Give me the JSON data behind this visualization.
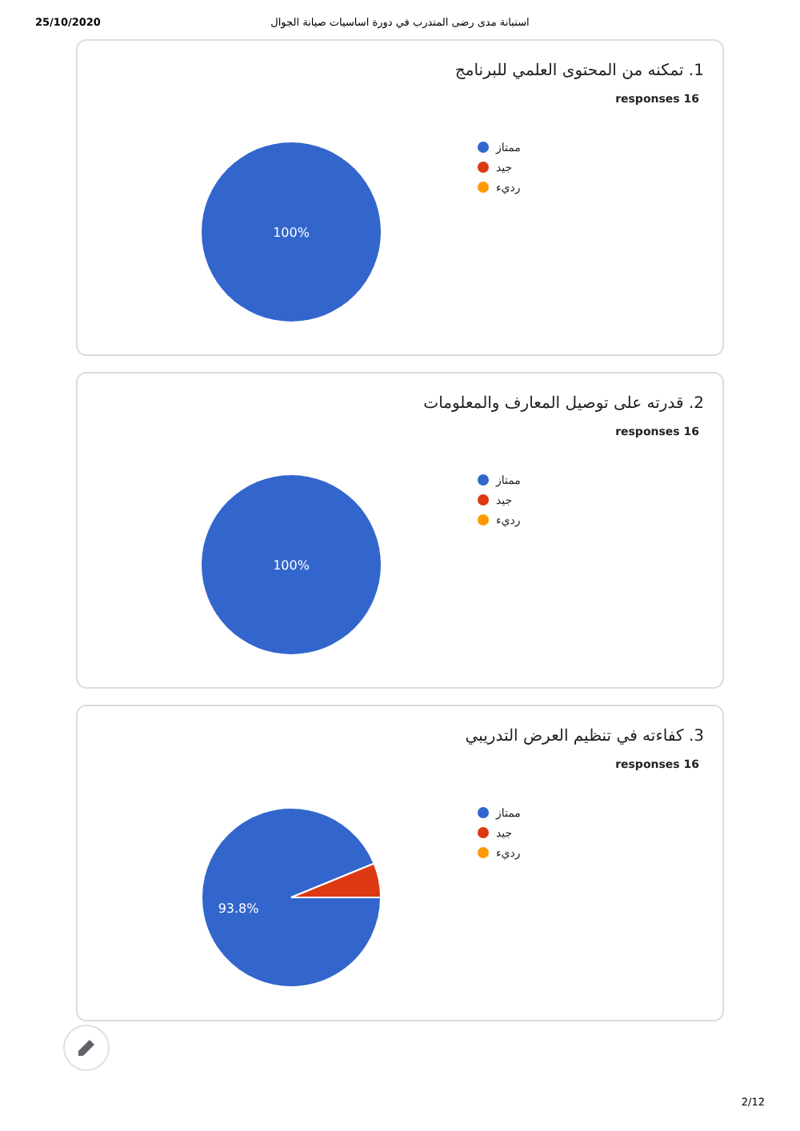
{
  "chart_data": [
    {
      "type": "pie",
      "title": "1. تمكنه من المحتوى العلمي للبرنامج",
      "subtitle": "16 responses",
      "categories": [
        "ممتاز",
        "جيد",
        "رديء"
      ],
      "values": [
        100,
        0,
        0
      ],
      "colors": [
        "#3366cc",
        "#dc3912",
        "#ff9900"
      ],
      "value_labels": [
        "100%",
        null,
        null
      ],
      "legend": "right",
      "annotations": [
        "25/10/2020",
        "استبانة مدى رضى المتدرب في دورة اساسيات صيانة الجوال",
        "2/12"
      ]
    },
    {
      "type": "pie",
      "title": "2. قدرته على توصيل المعارف والمعلومات",
      "subtitle": "16 responses",
      "categories": [
        "ممتاز",
        "جيد",
        "رديء"
      ],
      "values": [
        100,
        0,
        0
      ],
      "colors": [
        "#3366cc",
        "#dc3912",
        "#ff9900"
      ],
      "value_labels": [
        "100%",
        null,
        null
      ],
      "legend": "right"
    },
    {
      "type": "pie",
      "title": "3. كفاءته في تنظيم العرض التدريبي",
      "subtitle": "16 responses",
      "categories": [
        "ممتاز",
        "جيد",
        "رديء"
      ],
      "values": [
        93.8,
        6.2,
        0
      ],
      "colors": [
        "#3366cc",
        "#dc3912",
        "#ff9900"
      ],
      "value_labels": [
        "93.8%",
        null,
        null
      ],
      "legend": "right"
    }
  ]
}
